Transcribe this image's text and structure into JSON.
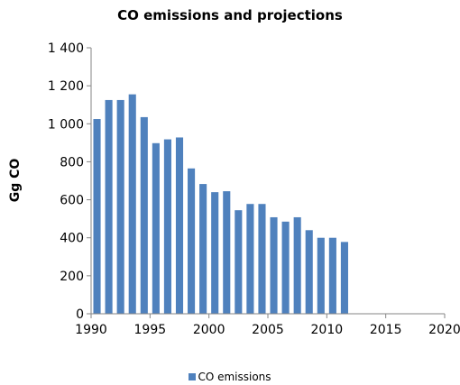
{
  "chart_data": {
    "type": "bar",
    "title": "CO emissions and projections",
    "xlabel": "",
    "ylabel": "Gg CO",
    "ylim": [
      0,
      1400
    ],
    "xlim": [
      1990,
      2020
    ],
    "yticks": [
      0,
      200,
      400,
      600,
      800,
      1000,
      1200,
      1400
    ],
    "ytick_labels": [
      "0",
      "200",
      "400",
      "600",
      "800",
      "1 000",
      "1 200",
      "1 400"
    ],
    "xticks": [
      1990,
      1995,
      2000,
      2005,
      2010,
      2015,
      2020
    ],
    "xtick_labels": [
      "1990",
      "1995",
      "2000",
      "2005",
      "2010",
      "2015",
      "2020"
    ],
    "grid": false,
    "legend_position": "bottom",
    "series": [
      {
        "name": "CO emissions",
        "color": "#4f81bd",
        "x": [
          1990,
          1991,
          1992,
          1993,
          1994,
          1995,
          1996,
          1997,
          1998,
          1999,
          2000,
          2001,
          2002,
          2003,
          2004,
          2005,
          2006,
          2007,
          2008,
          2009,
          2010,
          2011
        ],
        "values": [
          1025,
          1125,
          1125,
          1155,
          1035,
          898,
          918,
          928,
          765,
          683,
          640,
          645,
          545,
          578,
          578,
          508,
          485,
          508,
          440,
          400,
          400,
          378
        ]
      }
    ]
  }
}
